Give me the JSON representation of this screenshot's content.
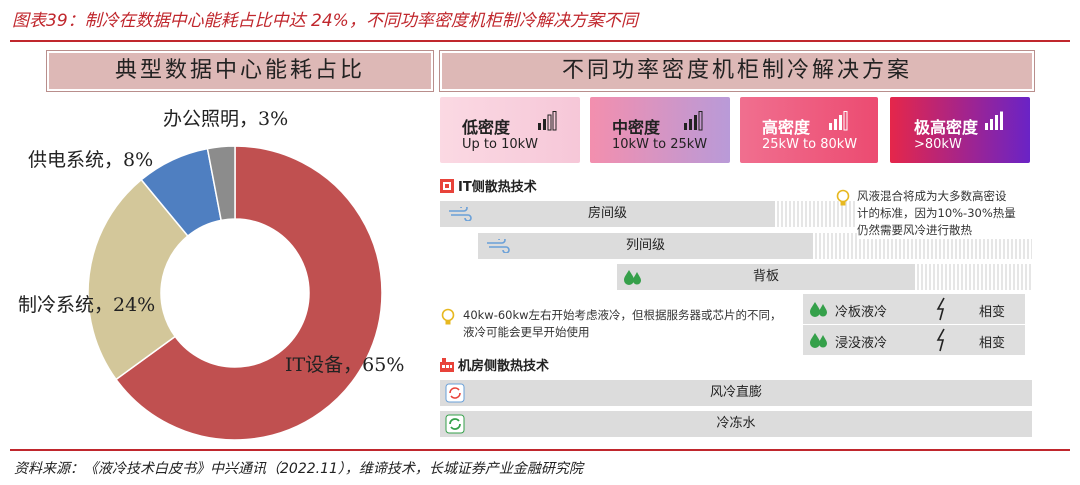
{
  "figure_title": "图表39：制冷在数据中心能耗占比中达 24%，不同功率密度机柜制冷解决方案不同",
  "left_panel": {
    "title": "典型数据中心能耗占比"
  },
  "chart_data": {
    "type": "pie",
    "categories": [
      "IT设备",
      "制冷系统",
      "供电系统",
      "办公照明"
    ],
    "values": [
      65,
      24,
      8,
      3
    ],
    "value_labels": [
      "IT设备，65%",
      "制冷系统，24%",
      "供电系统，8%",
      "办公照明，3%"
    ],
    "colors": [
      "#c05050",
      "#d3c79a",
      "#4f7fc1",
      "#8c8c8c"
    ],
    "title": "",
    "legend": "none"
  },
  "right_panel": {
    "title": "不同功率密度机柜制冷解决方案",
    "density_cards": [
      {
        "name": "低密度",
        "range": "Up to 10kW",
        "color_from": "#fbd9e3",
        "color_to": "#f6c7d8"
      },
      {
        "name": "中密度",
        "range": "10kW to 25kW",
        "color_from": "#f38fae",
        "color_to": "#b99ad8"
      },
      {
        "name": "高密度",
        "range": "25kW to 80kW",
        "color_from": "#f06f8f",
        "color_to": "#ec4b71"
      },
      {
        "name": "极高密度",
        "range": ">80kW",
        "color_from": "#e5264a",
        "color_to": "#6a23c6"
      }
    ],
    "it_section": {
      "title": "IT侧散热技术",
      "bars": [
        "房间级",
        "列间级",
        "背板"
      ],
      "note1": [
        "风液混合将成为大多数高密设",
        "计的标准，因为10%-30%热量",
        "仍然需要风冷进行散热"
      ],
      "note2": [
        "40kw-60kw左右开始考虑液冷，但根据服务器或芯片的不同，",
        "液冷可能会更早开始使用"
      ],
      "liquid": [
        {
          "name": "冷板液冷",
          "tag": "相变"
        },
        {
          "name": "浸没液冷",
          "tag": "相变"
        }
      ]
    },
    "room_section": {
      "title": "机房侧散热技术",
      "bars": [
        "风冷直膨",
        "冷冻水"
      ]
    }
  },
  "source": "资料来源：《液冷技术白皮书》中兴通讯（2022.11），维谛技术，长城证券产业金融研究院"
}
